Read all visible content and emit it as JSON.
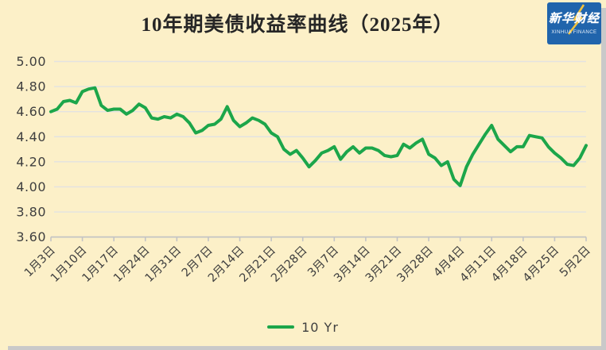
{
  "page": {
    "background_color": "#FCF0C8"
  },
  "header": {
    "title": "10年期美债收益率曲线（2025年）",
    "logo": {
      "cn": "新华财经",
      "en": "XINHUA FINANCE",
      "bg_color": "#2064AC",
      "accent_color": "#F2C23E"
    }
  },
  "legend": {
    "label": "10 Yr",
    "color": "#1CA64A"
  },
  "chart_data": {
    "type": "line",
    "title": "10年期美债收益率曲线（2025年）",
    "ylim": [
      3.6,
      5.0
    ],
    "y_tick_step": 0.2,
    "y_ticks": [
      "5.00",
      "4.80",
      "4.60",
      "4.40",
      "4.20",
      "4.00",
      "3.80",
      "3.60"
    ],
    "x_labels": [
      "1月3日",
      "1月10日",
      "1月17日",
      "1月24日",
      "1月31日",
      "2月7日",
      "2月14日",
      "2月21日",
      "2月28日",
      "3月7日",
      "3月14日",
      "3月21日",
      "3月28日",
      "4月4日",
      "4月11日",
      "4月18日",
      "4月25日",
      "5月2日"
    ],
    "x_label_interval": 5,
    "grid": "horizontal",
    "legend_position": "bottom",
    "colors": {
      "line": "#1CA64A",
      "gridline": "#E2E2E2",
      "axis_line": "#C4C4C4",
      "tick_text": "#3F3F3F"
    },
    "series": [
      {
        "name": "10 Yr",
        "color": "#1CA64A",
        "values": [
          4.6,
          4.62,
          4.68,
          4.69,
          4.67,
          4.76,
          4.78,
          4.79,
          4.65,
          4.61,
          4.62,
          4.62,
          4.58,
          4.61,
          4.66,
          4.63,
          4.55,
          4.54,
          4.56,
          4.55,
          4.58,
          4.56,
          4.51,
          4.43,
          4.45,
          4.49,
          4.5,
          4.54,
          4.64,
          4.53,
          4.48,
          4.51,
          4.55,
          4.53,
          4.5,
          4.43,
          4.4,
          4.3,
          4.26,
          4.29,
          4.23,
          4.16,
          4.21,
          4.27,
          4.29,
          4.32,
          4.22,
          4.28,
          4.32,
          4.27,
          4.31,
          4.31,
          4.29,
          4.25,
          4.24,
          4.25,
          4.34,
          4.31,
          4.35,
          4.38,
          4.26,
          4.23,
          4.17,
          4.2,
          4.06,
          4.01,
          4.16,
          4.26,
          4.34,
          4.42,
          4.49,
          4.38,
          4.33,
          4.28,
          4.32,
          4.32,
          4.41,
          4.4,
          4.39,
          4.32,
          4.27,
          4.23,
          4.18,
          4.17,
          4.23,
          4.33
        ]
      }
    ]
  }
}
